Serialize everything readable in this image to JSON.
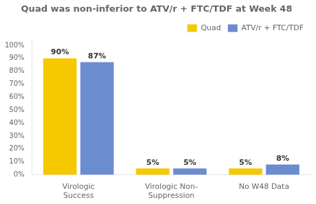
{
  "chart_data": {
    "type": "bar",
    "title": "Quad was non-inferior to ATV/r + FTC/TDF at Week 48",
    "categories": [
      "Virologic\nSuccess",
      "Virologic Non-\nSuppression",
      "No W48 Data"
    ],
    "series": [
      {
        "name": "Quad",
        "color": "#f5c800",
        "values": [
          90,
          5,
          5
        ],
        "value_labels": [
          "90%",
          "5%",
          "5%"
        ]
      },
      {
        "name": "ATV/r + FTC/TDF",
        "color": "#6b8cce",
        "values": [
          87,
          5,
          8
        ],
        "value_labels": [
          "87%",
          "5%",
          "8%"
        ]
      }
    ],
    "ylim": [
      0,
      105
    ],
    "yticks": [
      {
        "value": 0,
        "label": "0%"
      },
      {
        "value": 10,
        "label": "10%"
      },
      {
        "value": 20,
        "label": "20%"
      },
      {
        "value": 30,
        "label": "30%"
      },
      {
        "value": 40,
        "label": "40%"
      },
      {
        "value": 50,
        "label": "50%"
      },
      {
        "value": 60,
        "label": "60%"
      },
      {
        "value": 70,
        "label": "70%"
      },
      {
        "value": 80,
        "label": "80%"
      },
      {
        "value": 90,
        "label": "90%"
      },
      {
        "value": 100,
        "label": "100%"
      }
    ],
    "grid": false,
    "legend": "upper right",
    "data_labels": true
  }
}
